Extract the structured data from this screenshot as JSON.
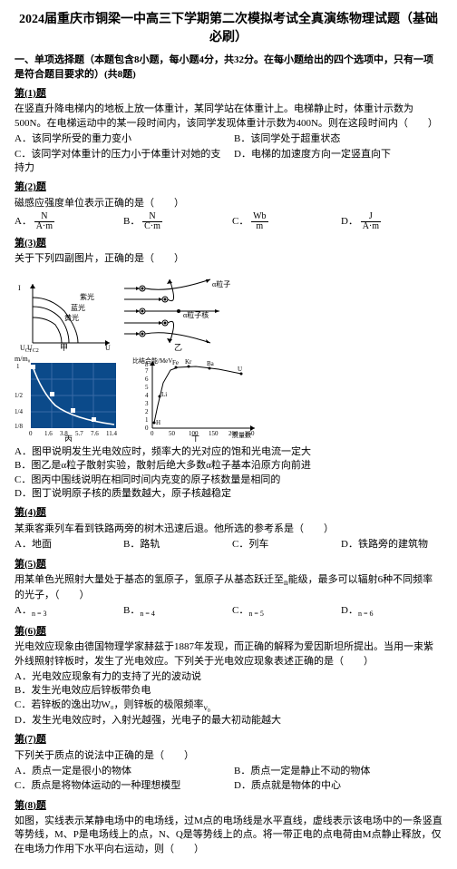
{
  "title": "2024届重庆市铜梁一中高三下学期第二次模拟考试全真演练物理试题（基础必刷）",
  "section1_head": "一、单项选择题（本题包含8小题，每小题4分，共32分。在每小题给出的四个选项中，只有一项是符合题目要求的）(共8题)",
  "q1": {
    "label": "第(1)题",
    "body": "在竖直升降电梯内的地板上放一体重计，某同学站在体重计上。电梯静止时，体重计示数为500N。在电梯运动中的某一段时间内，该同学发现体重计示数为400N。则在这段时间内（　　）",
    "opts": [
      "A．该同学所受的重力变小",
      "B．该同学处于超重状态",
      "C．该同学对体重计的压力小于体重计对她的支持力",
      "D．电梯的加速度方向一定竖直向下"
    ]
  },
  "q2": {
    "label": "第(2)题",
    "body": "磁感应强度单位表示正确的是（　　）",
    "opts": [
      "A．",
      "B．",
      "C．",
      "D．"
    ],
    "fracs": [
      {
        "num": "N",
        "den": "A·m"
      },
      {
        "num": "N",
        "den": "C·m"
      },
      {
        "num": "Wb",
        "den": "m"
      },
      {
        "num": "J",
        "den": "A·m"
      }
    ]
  },
  "q3": {
    "label": "第(3)题",
    "body": "关于下列四副图片，正确的是（　　）",
    "opts": [
      "A．图甲说明发生光电效应时，频率大的光对应的饱和光电流一定大",
      "B．图乙是α粒子散射实验，散射后绝大多数α粒子基本沿原方向前进",
      "C．图丙中围线说明在相同时间内克变的原子核数量是相同的",
      "D．图丁说明原子核的质量数越大，原子核越稳定"
    ],
    "fig_labels": {
      "fig1": {
        "caption": "甲",
        "y1": "紫光",
        "y2": "蓝光",
        "y3": "黄光",
        "xlabel_right": "U",
        "xlabel_left": "U"
      },
      "fig2": {
        "caption": "乙",
        "labels": [
          "α粒子",
          "α粒子核"
        ]
      },
      "fig3": {
        "caption": "丙",
        "xlabel": "周期",
        "ylabel": "m/m₀",
        "xticks": [
          "0",
          "1.6",
          "3.8",
          "5.7",
          "7.6",
          "11.4"
        ],
        "yticks": [
          "1",
          "1/2",
          "1/4",
          "1/8"
        ]
      },
      "fig4": {
        "caption": "丁",
        "ylabel": "比结合能/MeV",
        "xlabel": "质量数",
        "xticks": [
          "0",
          "50",
          "100",
          "150",
          "200",
          "250"
        ],
        "yticks": [
          "1",
          "2",
          "3",
          "4",
          "5",
          "6",
          "7",
          "8"
        ],
        "points": [
          "H",
          "Li",
          "Fe",
          "Kr",
          "Ba",
          "U"
        ]
      }
    }
  },
  "q4": {
    "label": "第(4)题",
    "body": "某乘客乘列车看到铁路两旁的树木迅速后退。他所选的参考系是（　　）",
    "opts": [
      "A．地面",
      "B．路轨",
      "C．列车",
      "D．铁路旁的建筑物"
    ]
  },
  "q5": {
    "label": "第(5)题",
    "body": "用某单色光照射大量处于基态的氢原子，氢原子从基态跃迁至<sub>n</sub>能级，最多可以辐射6种不同频率的光子，（　　）",
    "opts": [
      "A．",
      "B．",
      "C．",
      "D．"
    ],
    "vals": [
      "n = 3",
      "n = 4",
      "n = 5",
      "n = 6"
    ]
  },
  "q6": {
    "label": "第(6)题",
    "body": "光电效应现象由德国物理学家赫兹于1887年发现，而正确的解释为爱因斯坦所提出。当用一束紫外线照射锌板时，发生了光电效应。下列关于光电效应现象表述正确的是（　　）",
    "opts": [
      "A．光电效应现象有力的支持了光的波动说",
      "B．发生光电效应后锌板带负电",
      "C．若锌板的逸出功W₀，则锌板的极限频率<sub>ν₀</sub>",
      "D．发生光电效应时，入射光越强，光电子的最大初动能越大"
    ]
  },
  "q7": {
    "label": "第(7)题",
    "body": "下列关于质点的说法中正确的是（　　）",
    "opts": [
      "A．质点一定是很小的物体",
      "B．质点一定是静止不动的物体",
      "C．质点是将物体运动的一种理想模型",
      "D．质点就是物体的中心"
    ]
  },
  "q8": {
    "label": "第(8)题",
    "body": "如图，实线表示某静电场中的电场线，过M点的电场线是水平直线，虚线表示该电场中的一条竖直等势线，M、P是电场线上的点，N、Q是等势线上的点。将一带正电的点电荷由M点静止释放，仅在电场力作用下水平向右运动，则（　　）"
  },
  "colors": {
    "text": "#000000",
    "accent": "#f0f0f0"
  }
}
